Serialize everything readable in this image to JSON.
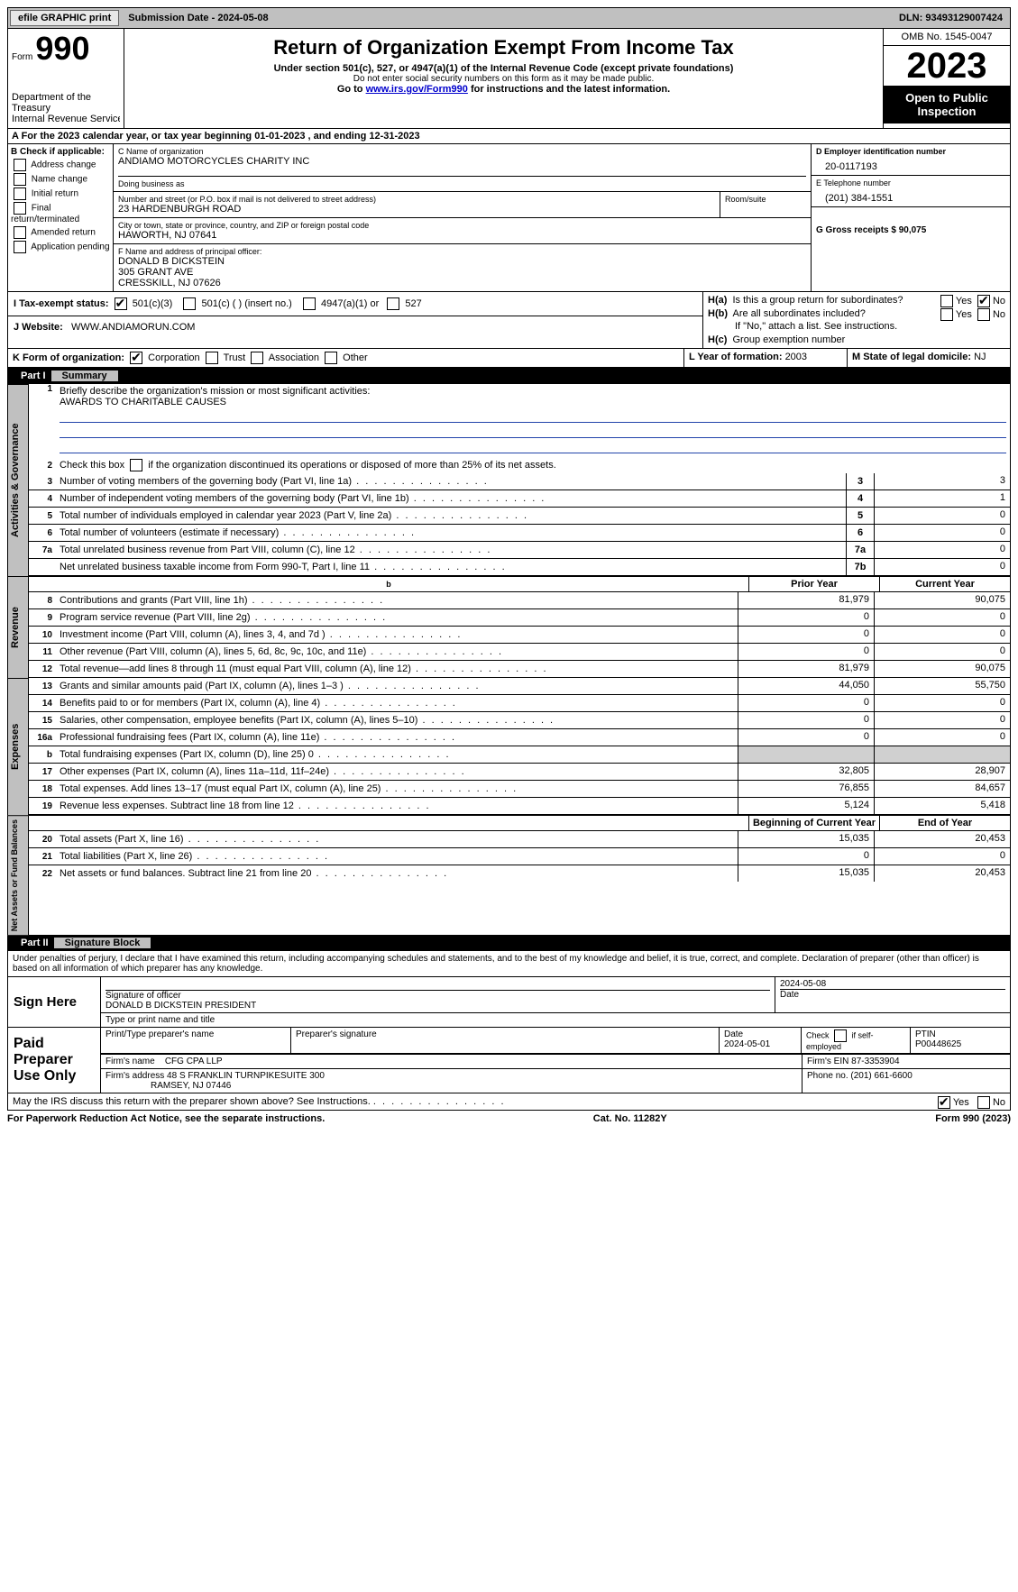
{
  "topbar": {
    "efile": "efile GRAPHIC print",
    "submission_lbl": "Submission Date - ",
    "submission_date": "2024-05-08",
    "dln_lbl": "DLN: ",
    "dln": "93493129007424"
  },
  "header": {
    "form_word": "Form",
    "form_no": "990",
    "dept": "Department of the Treasury",
    "irs": "Internal Revenue Service",
    "title": "Return of Organization Exempt From Income Tax",
    "sub": "Under section 501(c), 527, or 4947(a)(1) of the Internal Revenue Code (except private foundations)",
    "ssn": "Do not enter social security numbers on this form as it may be made public.",
    "goto_pre": "Go to ",
    "goto_link": "www.irs.gov/Form990",
    "goto_post": " for instructions and the latest information.",
    "omb": "OMB No. 1545-0047",
    "year": "2023",
    "open": "Open to Public Inspection"
  },
  "row_a": "A For the 2023 calendar year, or tax year beginning 01-01-2023    , and ending 12-31-2023",
  "col_b": {
    "hdr": "B Check if applicable:",
    "items": [
      "Address change",
      "Name change",
      "Initial return",
      "Final return/terminated",
      "Amended return",
      "Application pending"
    ]
  },
  "col_c": {
    "name_lbl": "C Name of organization",
    "name": "ANDIAMO MOTORCYCLES CHARITY INC",
    "dba_lbl": "Doing business as",
    "street_lbl": "Number and street (or P.O. box if mail is not delivered to street address)",
    "street": "23 HARDENBURGH ROAD",
    "room_lbl": "Room/suite",
    "city_lbl": "City or town, state or province, country, and ZIP or foreign postal code",
    "city": "HAWORTH, NJ  07641",
    "f_lbl": "F  Name and address of principal officer:",
    "f_name": "DONALD B DICKSTEIN",
    "f_addr1": "305 GRANT AVE",
    "f_addr2": "CRESSKILL, NJ  07626"
  },
  "col_d": {
    "d_lbl": "D Employer identification number",
    "d_val": "20-0117193",
    "e_lbl": "E Telephone number",
    "e_val": "(201) 384-1551",
    "g_lbl": "G Gross receipts $ ",
    "g_val": "90,075"
  },
  "col_h": {
    "ha_lbl": "H(a)  Is this a group return for subordinates?",
    "hb_lbl": "H(b)  Are all subordinates included?",
    "hb_note": "If \"No,\" attach a list. See instructions.",
    "hc_lbl": "H(c)  Group exemption number",
    "yes": "Yes",
    "no": "No"
  },
  "tax_status": {
    "i_lbl": "I   Tax-exempt status:",
    "o1": "501(c)(3)",
    "o2": "501(c) (  ) (insert no.)",
    "o3": "4947(a)(1) or",
    "o4": "527"
  },
  "website": {
    "j_lbl": "J   Website:",
    "val": "WWW.ANDIAMORUN.COM"
  },
  "row_k": {
    "k_lbl": "K Form of organization:",
    "opts": [
      "Corporation",
      "Trust",
      "Association",
      "Other"
    ],
    "l_lbl": "L Year of formation: ",
    "l_val": "2003",
    "m_lbl": "M State of legal domicile: ",
    "m_val": "NJ"
  },
  "part1": {
    "lbl": "Part I",
    "title": "Summary",
    "l1_lbl": "Briefly describe the organization's mission or most significant activities:",
    "l1_val": "AWARDS TO CHARITABLE CAUSES",
    "l2": "Check this box      if the organization discontinued its operations or disposed of more than 25% of its net assets.",
    "sections": {
      "gov": "Activities & Governance",
      "rev": "Revenue",
      "exp": "Expenses",
      "net": "Net Assets or Fund Balances"
    },
    "prior_lbl": "Prior Year",
    "curr_lbl": "Current Year",
    "begin_lbl": "Beginning of Current Year",
    "end_lbl": "End of Year",
    "lines_gov": [
      {
        "n": "3",
        "d": "Number of voting members of the governing body (Part VI, line 1a)",
        "b": "3",
        "v": "3"
      },
      {
        "n": "4",
        "d": "Number of independent voting members of the governing body (Part VI, line 1b)",
        "b": "4",
        "v": "1"
      },
      {
        "n": "5",
        "d": "Total number of individuals employed in calendar year 2023 (Part V, line 2a)",
        "b": "5",
        "v": "0"
      },
      {
        "n": "6",
        "d": "Total number of volunteers (estimate if necessary)",
        "b": "6",
        "v": "0"
      },
      {
        "n": "7a",
        "d": "Total unrelated business revenue from Part VIII, column (C), line 12",
        "b": "7a",
        "v": "0"
      },
      {
        "n": "",
        "d": "Net unrelated business taxable income from Form 990-T, Part I, line 11",
        "b": "7b",
        "v": "0"
      }
    ],
    "lines_rev": [
      {
        "n": "8",
        "d": "Contributions and grants (Part VIII, line 1h)",
        "p": "81,979",
        "c": "90,075"
      },
      {
        "n": "9",
        "d": "Program service revenue (Part VIII, line 2g)",
        "p": "0",
        "c": "0"
      },
      {
        "n": "10",
        "d": "Investment income (Part VIII, column (A), lines 3, 4, and 7d )",
        "p": "0",
        "c": "0"
      },
      {
        "n": "11",
        "d": "Other revenue (Part VIII, column (A), lines 5, 6d, 8c, 9c, 10c, and 11e)",
        "p": "0",
        "c": "0"
      },
      {
        "n": "12",
        "d": "Total revenue—add lines 8 through 11 (must equal Part VIII, column (A), line 12)",
        "p": "81,979",
        "c": "90,075"
      }
    ],
    "lines_exp": [
      {
        "n": "13",
        "d": "Grants and similar amounts paid (Part IX, column (A), lines 1–3 )",
        "p": "44,050",
        "c": "55,750"
      },
      {
        "n": "14",
        "d": "Benefits paid to or for members (Part IX, column (A), line 4)",
        "p": "0",
        "c": "0"
      },
      {
        "n": "15",
        "d": "Salaries, other compensation, employee benefits (Part IX, column (A), lines 5–10)",
        "p": "0",
        "c": "0"
      },
      {
        "n": "16a",
        "d": "Professional fundraising fees (Part IX, column (A), line 11e)",
        "p": "0",
        "c": "0"
      },
      {
        "n": "b",
        "d": "Total fundraising expenses (Part IX, column (D), line 25) 0",
        "p": "",
        "c": "",
        "shade": true
      },
      {
        "n": "17",
        "d": "Other expenses (Part IX, column (A), lines 11a–11d, 11f–24e)",
        "p": "32,805",
        "c": "28,907"
      },
      {
        "n": "18",
        "d": "Total expenses. Add lines 13–17 (must equal Part IX, column (A), line 25)",
        "p": "76,855",
        "c": "84,657"
      },
      {
        "n": "19",
        "d": "Revenue less expenses. Subtract line 18 from line 12",
        "p": "5,124",
        "c": "5,418"
      }
    ],
    "lines_net": [
      {
        "n": "20",
        "d": "Total assets (Part X, line 16)",
        "p": "15,035",
        "c": "20,453"
      },
      {
        "n": "21",
        "d": "Total liabilities (Part X, line 26)",
        "p": "0",
        "c": "0"
      },
      {
        "n": "22",
        "d": "Net assets or fund balances. Subtract line 21 from line 20",
        "p": "15,035",
        "c": "20,453"
      }
    ]
  },
  "part2": {
    "lbl": "Part II",
    "title": "Signature Block",
    "perjury": "Under penalties of perjury, I declare that I have examined this return, including accompanying schedules and statements, and to the best of my knowledge and belief, it is true, correct, and complete. Declaration of preparer (other than officer) is based on all information of which preparer has any knowledge.",
    "sign_here": "Sign Here",
    "sig_officer_lbl": "Signature of officer",
    "sig_officer": "DONALD B DICKSTEIN  PRESIDENT",
    "type_lbl": "Type or print name and title",
    "date_lbl": "Date",
    "sig_date": "2024-05-08",
    "paid": "Paid Preparer Use Only",
    "prep_name_lbl": "Print/Type preparer's name",
    "prep_sig_lbl": "Preparer's signature",
    "prep_date_lbl": "Date",
    "prep_date": "2024-05-01",
    "self_lbl": "Check       if self-employed",
    "ptin_lbl": "PTIN",
    "ptin": "P00448625",
    "firm_name_lbl": "Firm's name",
    "firm_name": "CFG CPA LLP",
    "firm_ein_lbl": "Firm's EIN",
    "firm_ein": "87-3353904",
    "firm_addr_lbl": "Firm's address",
    "firm_addr": "48 S FRANKLIN TURNPIKESUITE 300",
    "firm_city": "RAMSEY, NJ  07446",
    "phone_lbl": "Phone no.",
    "phone": "(201) 661-6600",
    "discuss": "May the IRS discuss this return with the preparer shown above? See Instructions.",
    "yes": "Yes",
    "no": "No"
  },
  "footer": {
    "left": "For Paperwork Reduction Act Notice, see the separate instructions.",
    "mid": "Cat. No. 11282Y",
    "right_pre": "Form ",
    "right_no": "990",
    "right_post": " (2023)"
  }
}
